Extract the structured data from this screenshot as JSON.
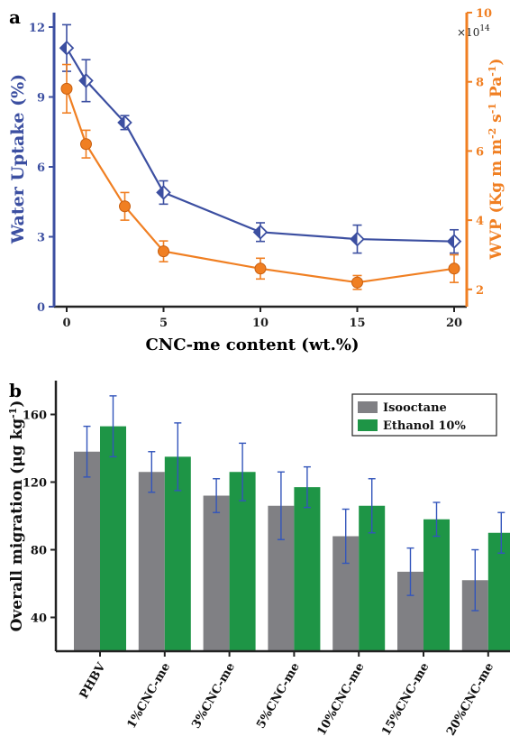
{
  "panel_a": {
    "panel_letter": "a",
    "multiplier": "×10",
    "multiplier_exp": "14",
    "xlabel": "CNC-me content (wt.%)",
    "ylabel_left": "Water Uptake (%)",
    "ylabel_right": "WVP (Kg m m",
    "ylabel_right_parts": [
      "WVP (Kg m m",
      "-2",
      " s",
      "-1",
      " Pa",
      "-1",
      ")"
    ]
  },
  "panel_b": {
    "panel_letter": "b",
    "ylabel": "Overall migration (μg kg",
    "ylabel_sup": "-1",
    "ylabel_close": ")"
  },
  "colors": {
    "water": "#3c4fa1",
    "wvp": "#f07f22",
    "isooctane": "#808084",
    "ethanol": "#1e9546",
    "errbar": "#3355bb"
  },
  "chart_data": [
    {
      "type": "line",
      "x": [
        0,
        1,
        3,
        5,
        10,
        15,
        20
      ],
      "xticks": [
        "0",
        "5",
        "10",
        "15",
        "20"
      ],
      "xlim": [
        0,
        20
      ],
      "xlabel": "CNC-me content (wt.%)",
      "series": [
        {
          "name": "Water Uptake (%)",
          "axis": "left",
          "marker": "diamond",
          "values": [
            11.1,
            9.7,
            7.9,
            4.9,
            3.2,
            2.9,
            2.8
          ],
          "errors": [
            1.0,
            0.9,
            0.3,
            0.5,
            0.4,
            0.6,
            0.5
          ]
        },
        {
          "name": "WVP (Kg m m-2 s-1 Pa-1)",
          "axis": "right",
          "marker": "circle",
          "values": [
            7.8,
            6.2,
            4.4,
            3.1,
            2.6,
            2.2,
            2.6
          ],
          "errors": [
            0.7,
            0.4,
            0.4,
            0.3,
            0.3,
            0.2,
            0.4
          ]
        }
      ],
      "ylim_left": [
        0,
        12
      ],
      "yticks_left": [
        "0",
        "3",
        "6",
        "9",
        "12"
      ],
      "ylim_right": [
        1.5,
        10
      ],
      "yticks_right": [
        "2",
        "4",
        "6",
        "8",
        "10"
      ]
    },
    {
      "type": "bar",
      "categories": [
        "PHBV",
        "1%CNC-me",
        "3%CNC-me",
        "5%CNC-me",
        "10%CNC-me",
        "15%CNC-me",
        "20%CNC-me"
      ],
      "series": [
        {
          "name": "Isooctane",
          "values": [
            138,
            126,
            112,
            106,
            88,
            67,
            62
          ],
          "errors": [
            15,
            12,
            10,
            20,
            16,
            14,
            18
          ]
        },
        {
          "name": "Ethanol 10%",
          "values": [
            153,
            135,
            126,
            117,
            106,
            98,
            90
          ],
          "errors": [
            18,
            20,
            17,
            12,
            16,
            10,
            12
          ]
        }
      ],
      "ylim": [
        20,
        180
      ],
      "yticks": [
        "40",
        "80",
        "120",
        "160"
      ],
      "legend": "top-right"
    }
  ]
}
